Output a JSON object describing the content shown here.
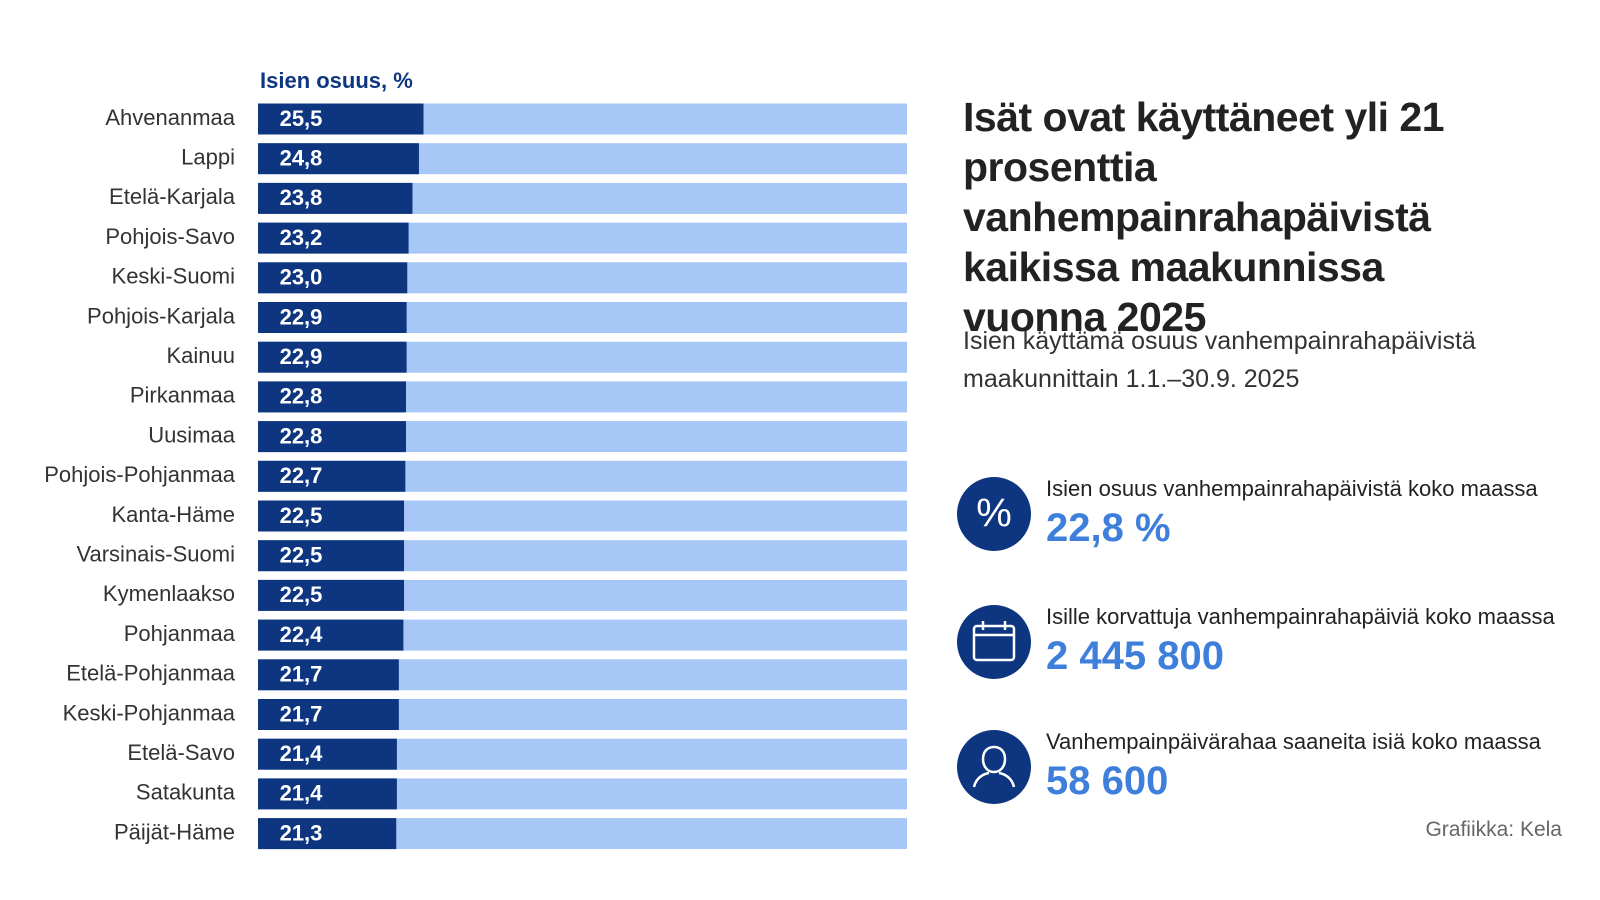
{
  "chart_data": {
    "type": "bar",
    "orientation": "horizontal",
    "title": "Isät ovat käyttäneet yli 21 prosenttia vanhempainrahapäivistä kaikissa maakunnissa vuonna 2025",
    "subtitle": "Isien käyttämä osuus vanhempainrahapäivistä maakunnittain 1.1.–30.9. 2025",
    "axis_label": "Isien osuus, %",
    "categories": [
      "Ahvenanmaa",
      "Lappi",
      "Etelä-Karjala",
      "Pohjois-Savo",
      "Keski-Suomi",
      "Pohjois-Karjala",
      "Kainuu",
      "Pirkanmaa",
      "Uusimaa",
      "Pohjois-Pohjanmaa",
      "Kanta-Häme",
      "Varsinais-Suomi",
      "Kymenlaakso",
      "Pohjanmaa",
      "Etelä-Pohjanmaa",
      "Keski-Pohjanmaa",
      "Etelä-Savo",
      "Satakunta",
      "Päijät-Häme"
    ],
    "values": [
      25.5,
      24.8,
      23.8,
      23.2,
      23.0,
      22.9,
      22.9,
      22.8,
      22.8,
      22.7,
      22.5,
      22.5,
      22.5,
      22.4,
      21.7,
      21.7,
      21.4,
      21.4,
      21.3
    ],
    "value_labels": [
      "25,5",
      "24,8",
      "23,8",
      "23,2",
      "23,0",
      "22,9",
      "22,9",
      "22,8",
      "22,8",
      "22,7",
      "22,5",
      "22,5",
      "22,5",
      "22,4",
      "21,7",
      "21,7",
      "21,4",
      "21,4",
      "21,3"
    ],
    "xlim": [
      0,
      100
    ],
    "color": "#0d3580",
    "background_color": "#a7c7f7"
  },
  "stats": [
    {
      "label": "Isien osuus vanhempainrahapäivistä koko maassa",
      "value": "22,8 %"
    },
    {
      "label": "Isille korvattuja vanhempainrahapäiviä koko maassa",
      "value": "2 445 800"
    },
    {
      "label": "Vanhempainpäivärahaa saaneita isiä koko maassa",
      "value": "58 600"
    }
  ],
  "credit": "Grafiikka: Kela"
}
